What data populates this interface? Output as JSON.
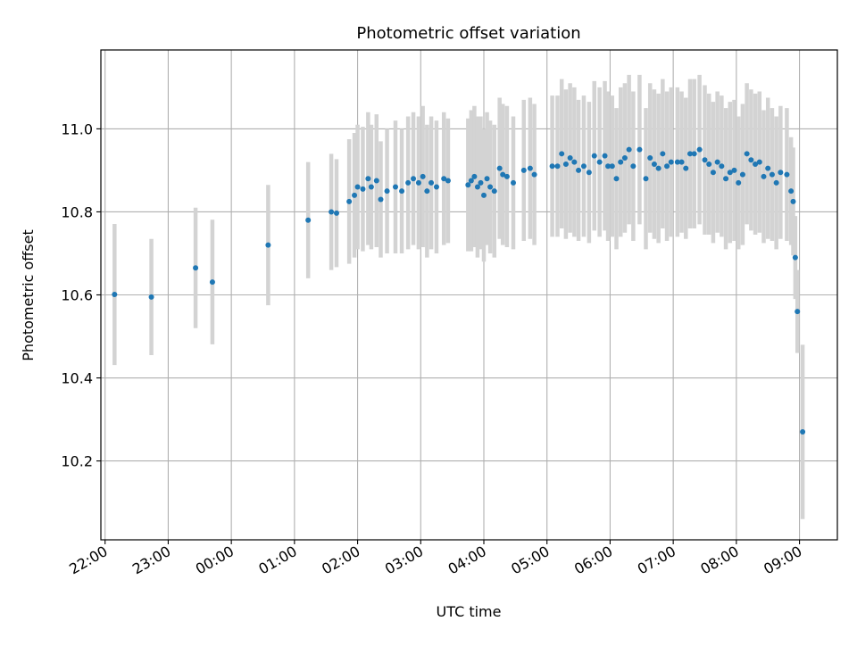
{
  "chart_data": {
    "type": "scatter",
    "title": "Photometric offset variation",
    "xlabel": "UTC time",
    "ylabel": "Photometric offset",
    "x_ticks": [
      "22:00",
      "23:00",
      "00:00",
      "01:00",
      "02:00",
      "03:00",
      "04:00",
      "05:00",
      "06:00",
      "07:00",
      "08:00",
      "09:00"
    ],
    "y_ticks": [
      "10.2",
      "10.4",
      "10.6",
      "10.8",
      "11.0"
    ],
    "x_range": [
      "21:56",
      "09:36"
    ],
    "ylim": [
      10.01,
      11.19
    ],
    "grid": true,
    "colors": {
      "points": "#1f77b4",
      "errorbars": "#d3d3d3",
      "grid": "#b0b0b0"
    },
    "series": [
      {
        "points": [
          [
            "22:09",
            10.601,
            0.17
          ],
          [
            "22:44",
            10.595,
            0.14
          ],
          [
            "23:26",
            10.665,
            0.145
          ],
          [
            "23:42",
            10.631,
            0.15
          ],
          [
            "00:35",
            10.72,
            0.145
          ],
          [
            "01:13",
            10.78,
            0.14
          ],
          [
            "01:35",
            10.8,
            0.14
          ],
          [
            "01:40",
            10.797,
            0.13
          ],
          [
            "01:52",
            10.825,
            0.15
          ],
          [
            "01:57",
            10.84,
            0.15
          ],
          [
            "02:00",
            10.86,
            0.15
          ],
          [
            "02:05",
            10.855,
            0.15
          ],
          [
            "02:10",
            10.88,
            0.16
          ],
          [
            "02:13",
            10.86,
            0.15
          ],
          [
            "02:18",
            10.875,
            0.16
          ],
          [
            "02:22",
            10.83,
            0.14
          ],
          [
            "02:28",
            10.85,
            0.15
          ],
          [
            "02:36",
            10.86,
            0.16
          ],
          [
            "02:42",
            10.85,
            0.15
          ],
          [
            "02:48",
            10.87,
            0.16
          ],
          [
            "02:53",
            10.88,
            0.16
          ],
          [
            "02:58",
            10.87,
            0.16
          ],
          [
            "03:02",
            10.885,
            0.17
          ],
          [
            "03:06",
            10.85,
            0.16
          ],
          [
            "03:10",
            10.87,
            0.16
          ],
          [
            "03:15",
            10.86,
            0.16
          ],
          [
            "03:22",
            10.88,
            0.16
          ],
          [
            "03:26",
            10.875,
            0.15
          ],
          [
            "03:45",
            10.865,
            0.16
          ],
          [
            "03:48",
            10.875,
            0.17
          ],
          [
            "03:51",
            10.885,
            0.17
          ],
          [
            "03:54",
            10.86,
            0.17
          ],
          [
            "03:57",
            10.87,
            0.16
          ],
          [
            "04:00",
            10.84,
            0.16
          ],
          [
            "04:03",
            10.88,
            0.16
          ],
          [
            "04:06",
            10.86,
            0.16
          ],
          [
            "04:10",
            10.85,
            0.16
          ],
          [
            "04:15",
            10.905,
            0.17
          ],
          [
            "04:18",
            10.89,
            0.17
          ],
          [
            "04:22",
            10.885,
            0.17
          ],
          [
            "04:28",
            10.87,
            0.16
          ],
          [
            "04:38",
            10.9,
            0.17
          ],
          [
            "04:44",
            10.905,
            0.17
          ],
          [
            "04:48",
            10.89,
            0.17
          ],
          [
            "05:05",
            10.91,
            0.17
          ],
          [
            "05:10",
            10.91,
            0.17
          ],
          [
            "05:14",
            10.94,
            0.18
          ],
          [
            "05:18",
            10.915,
            0.18
          ],
          [
            "05:22",
            10.93,
            0.18
          ],
          [
            "05:26",
            10.92,
            0.18
          ],
          [
            "05:30",
            10.9,
            0.17
          ],
          [
            "05:35",
            10.91,
            0.17
          ],
          [
            "05:40",
            10.895,
            0.17
          ],
          [
            "05:45",
            10.935,
            0.18
          ],
          [
            "05:50",
            10.92,
            0.18
          ],
          [
            "05:55",
            10.935,
            0.18
          ],
          [
            "05:58",
            10.91,
            0.18
          ],
          [
            "06:02",
            10.91,
            0.17
          ],
          [
            "06:06",
            10.88,
            0.17
          ],
          [
            "06:10",
            10.92,
            0.18
          ],
          [
            "06:14",
            10.93,
            0.18
          ],
          [
            "06:18",
            10.95,
            0.18
          ],
          [
            "06:22",
            10.91,
            0.18
          ],
          [
            "06:28",
            10.95,
            0.18
          ],
          [
            "06:34",
            10.88,
            0.17
          ],
          [
            "06:38",
            10.93,
            0.18
          ],
          [
            "06:42",
            10.915,
            0.18
          ],
          [
            "06:46",
            10.905,
            0.18
          ],
          [
            "06:50",
            10.94,
            0.18
          ],
          [
            "06:54",
            10.91,
            0.18
          ],
          [
            "06:58",
            10.92,
            0.18
          ],
          [
            "07:04",
            10.92,
            0.18
          ],
          [
            "07:08",
            10.92,
            0.17
          ],
          [
            "07:12",
            10.905,
            0.17
          ],
          [
            "07:16",
            10.94,
            0.18
          ],
          [
            "07:20",
            10.94,
            0.18
          ],
          [
            "07:25",
            10.95,
            0.18
          ],
          [
            "07:30",
            10.925,
            0.18
          ],
          [
            "07:34",
            10.915,
            0.17
          ],
          [
            "07:38",
            10.895,
            0.17
          ],
          [
            "07:42",
            10.92,
            0.17
          ],
          [
            "07:46",
            10.91,
            0.17
          ],
          [
            "07:50",
            10.88,
            0.17
          ],
          [
            "07:54",
            10.895,
            0.17
          ],
          [
            "07:58",
            10.9,
            0.17
          ],
          [
            "08:02",
            10.87,
            0.16
          ],
          [
            "08:06",
            10.89,
            0.17
          ],
          [
            "08:10",
            10.94,
            0.17
          ],
          [
            "08:14",
            10.925,
            0.17
          ],
          [
            "08:18",
            10.915,
            0.17
          ],
          [
            "08:22",
            10.92,
            0.17
          ],
          [
            "08:26",
            10.885,
            0.16
          ],
          [
            "08:30",
            10.905,
            0.17
          ],
          [
            "08:34",
            10.89,
            0.16
          ],
          [
            "08:38",
            10.87,
            0.16
          ],
          [
            "08:42",
            10.895,
            0.16
          ],
          [
            "08:48",
            10.89,
            0.16
          ],
          [
            "08:52",
            10.85,
            0.13
          ],
          [
            "08:54",
            10.825,
            0.13
          ],
          [
            "08:56",
            10.69,
            0.1
          ],
          [
            "08:58",
            10.56,
            0.1
          ],
          [
            "09:03",
            10.27,
            0.21
          ]
        ]
      }
    ]
  }
}
